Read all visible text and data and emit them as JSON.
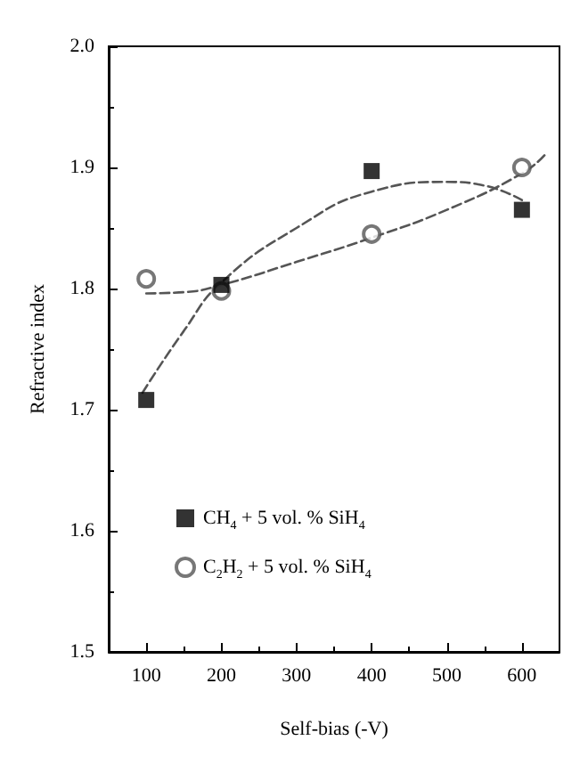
{
  "chart_data": {
    "type": "scatter",
    "xlabel": "Self-bias (-V)",
    "ylabel": "Refractive index",
    "xlim": [
      50,
      650
    ],
    "xticks": [
      100,
      200,
      300,
      400,
      500,
      600
    ],
    "ylim": [
      1.5,
      2.0
    ],
    "yticks": [
      {
        "value": 1.5,
        "label": "1.5"
      },
      {
        "value": 1.6,
        "label": "1.6"
      },
      {
        "value": 1.7,
        "label": "1.7"
      },
      {
        "value": 1.8,
        "label": "1.8"
      },
      {
        "value": 1.9,
        "label": "1.9"
      },
      {
        "value": 2,
        "label": "2.0"
      }
    ],
    "grid": false,
    "legend": "bottom left",
    "series": [
      {
        "name": "CH$_{4}$ + 5 vol. % SiH$_{4}$",
        "color": "#000000",
        "marker": "square",
        "x": [
          100,
          200,
          400,
          600
        ],
        "values": [
          1.708,
          1.803,
          1.897,
          1.865
        ]
      },
      {
        "name": "C$_{2}$H$_{2}$ + 5 vol. % SiH$_{4}$",
        "color": "#555555",
        "marker": "circle",
        "x": [
          100,
          200,
          400,
          600
        ],
        "values": [
          1.808,
          1.798,
          1.845,
          1.9
        ]
      },
      {
        "type": "line",
        "color": "#555555",
        "marker": "none",
        "line_style": "dashed",
        "x": [
          95,
          150,
          200,
          300,
          400,
          500,
          550,
          600
        ],
        "values": [
          1.714,
          1.765,
          1.805,
          1.85,
          1.88,
          1.888,
          1.885,
          1.873
        ]
      },
      {
        "type": "line",
        "color": "#555555",
        "marker": "none",
        "line_style": "dashed",
        "x": [
          100,
          150,
          200,
          300,
          400,
          500,
          600,
          630
        ],
        "values": [
          1.796,
          1.797,
          1.803,
          1.822,
          1.842,
          1.865,
          1.895,
          1.91
        ]
      }
    ]
  }
}
